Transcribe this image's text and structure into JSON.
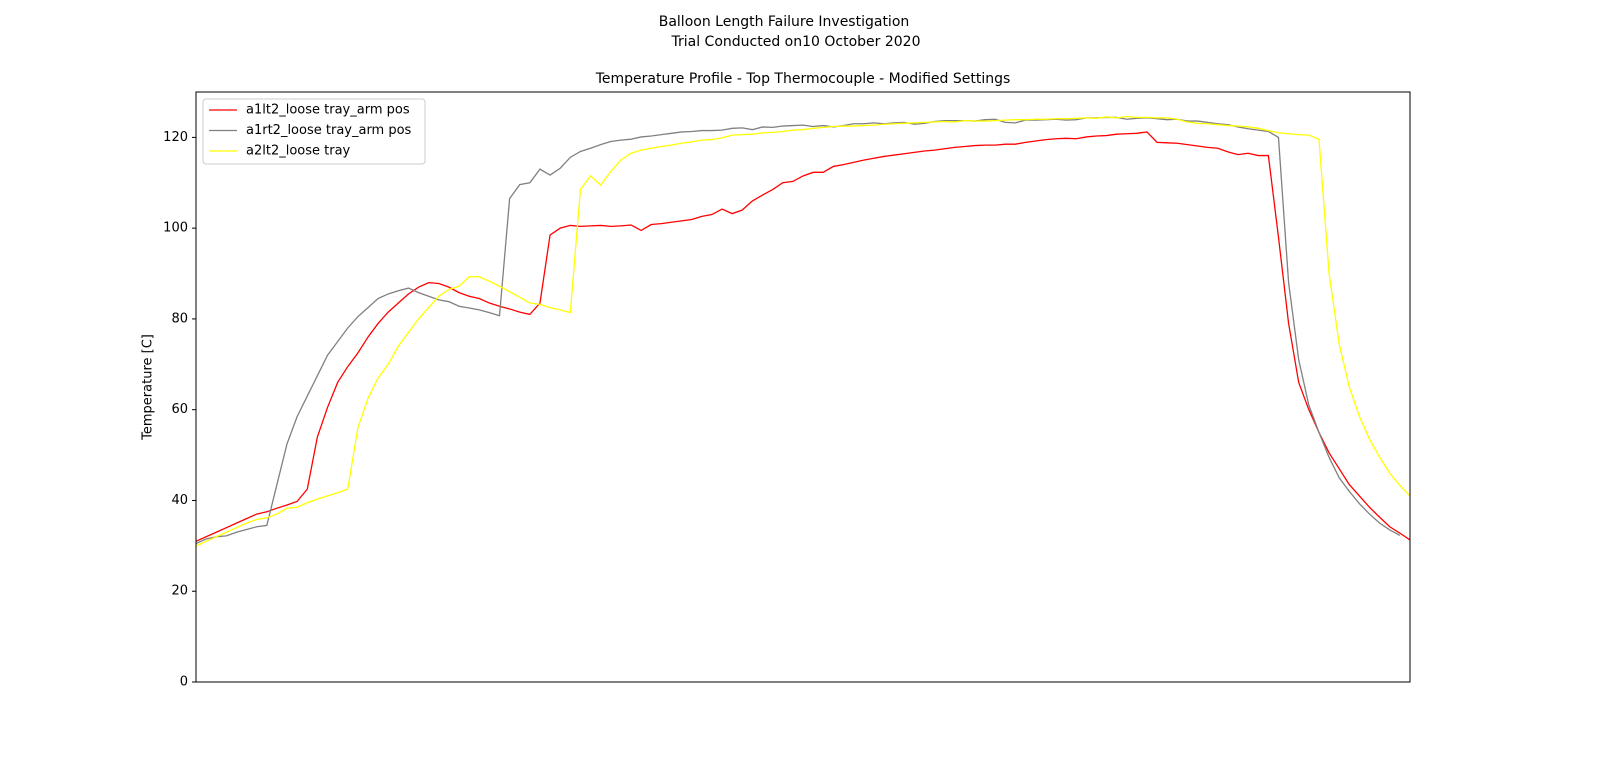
{
  "chart_data": {
    "type": "line",
    "suptitle": "Balloon Length Failure Investigation",
    "subtitle": "Trial Conducted on10 October 2020",
    "title": "Temperature Profile - Top Thermocouple - Modified Settings",
    "y_label": "Temperature [C]",
    "ylim": [
      0,
      130
    ],
    "yticks": [
      0,
      20,
      40,
      60,
      80,
      100,
      120
    ],
    "grid": false,
    "legend": "upper-left",
    "series": [
      {
        "name": "a1lt2_loose tray_arm pos",
        "color": "#ff0000",
        "values": [
          31,
          32,
          33,
          34,
          35,
          36,
          37,
          37.5,
          38.3,
          39,
          39.8,
          42.5,
          54,
          60.5,
          66,
          69.5,
          72.5,
          76,
          79,
          81.5,
          83.5,
          85.5,
          87,
          88,
          87.8,
          87,
          85.8,
          85,
          84.5,
          83.5,
          82.8,
          82.2,
          81.5,
          81,
          83.5,
          98.5,
          100,
          100.6,
          100.4,
          100.5,
          100.6,
          100.4,
          100.5,
          100.7,
          99.5,
          100.8,
          101,
          101.3,
          101.6,
          101.9,
          102.6,
          103,
          104.2,
          103.2,
          104,
          106,
          107.3,
          108.5,
          110,
          110.3,
          111.5,
          112.3,
          112.3,
          113.6,
          114,
          114.5,
          115,
          115.4,
          115.8,
          116.1,
          116.4,
          116.7,
          117,
          117.2,
          117.5,
          117.8,
          118,
          118.2,
          118.3,
          118.3,
          118.5,
          118.5,
          118.9,
          119.2,
          119.5,
          119.7,
          119.8,
          119.7,
          120.1,
          120.3,
          120.4,
          120.7,
          120.8,
          120.9,
          121.2,
          118.9,
          118.8,
          118.7,
          118.4,
          118.1,
          117.8,
          117.6,
          116.8,
          116.2,
          116.5,
          116,
          116,
          98,
          79,
          66,
          60,
          55,
          50.5,
          47,
          43.5,
          41,
          38.5,
          36.3,
          34.2,
          32.8,
          31.3
        ]
      },
      {
        "name": "a1rt2_loose tray_arm pos",
        "color": "#808080",
        "values": [
          30.5,
          31.5,
          32,
          32.2,
          33,
          33.6,
          34.2,
          34.5,
          43.5,
          52.5,
          58.5,
          63,
          67.5,
          72,
          75,
          78,
          80.5,
          82.5,
          84.5,
          85.5,
          86.2,
          86.8,
          85.8,
          85,
          84.2,
          83.8,
          82.8,
          82.4,
          82,
          81.4,
          80.7,
          106.5,
          109.6,
          110,
          113,
          111.7,
          113.2,
          115.6,
          116.9,
          117.6,
          118.4,
          119.1,
          119.4,
          119.6,
          120.1,
          120.3,
          120.6,
          120.9,
          121.2,
          121.3,
          121.5,
          121.5,
          121.6,
          122,
          122.1,
          121.7,
          122.3,
          122.2,
          122.5,
          122.6,
          122.7,
          122.4,
          122.6,
          122.3,
          122.6,
          123,
          123,
          123.2,
          123,
          123.2,
          123.3,
          122.9,
          123.1,
          123.5,
          123.7,
          123.7,
          123.7,
          123.6,
          123.9,
          124,
          123.3,
          123.2,
          123.8,
          123.8,
          123.9,
          124,
          123.8,
          123.9,
          124.3,
          124.3,
          124.4,
          124.4,
          124,
          124.2,
          124.3,
          124.1,
          123.9,
          124,
          123.6,
          123.6,
          123.3,
          123,
          122.8,
          122.3,
          121.9,
          121.6,
          121.3,
          120,
          88,
          71,
          61,
          55,
          49.5,
          45,
          42,
          39.3,
          37,
          35,
          33.5,
          32.3
        ]
      },
      {
        "name": "a2lt2_loose tray",
        "color": "#ffff00",
        "values": [
          30,
          31,
          32,
          33,
          34,
          35,
          35.8,
          36.2,
          37,
          38.3,
          38.5,
          39.5,
          40.3,
          41,
          41.7,
          42.5,
          56,
          62.5,
          67,
          70,
          74,
          77,
          80,
          82.5,
          85,
          86.5,
          87.2,
          89.3,
          89.3,
          88.3,
          87.2,
          86,
          84.8,
          83.5,
          83.2,
          82.5,
          82,
          81.4,
          108.5,
          111.5,
          109.5,
          112.5,
          115,
          116.5,
          117.2,
          117.6,
          118,
          118.3,
          118.7,
          119,
          119.4,
          119.5,
          119.9,
          120.5,
          120.6,
          120.7,
          121,
          121.1,
          121.3,
          121.6,
          121.7,
          122,
          122.2,
          122.4,
          122.5,
          122.5,
          122.6,
          122.7,
          122.9,
          123,
          123.1,
          123.2,
          123.3,
          123.4,
          123.5,
          123.4,
          123.7,
          123.6,
          123.6,
          123.7,
          123.8,
          123.9,
          123.9,
          124,
          124,
          124.1,
          124.1,
          124.2,
          124.3,
          124.2,
          124.5,
          124.3,
          124.6,
          124.4,
          124.4,
          124.3,
          124.3,
          124,
          123.4,
          123.1,
          123,
          122.8,
          122.6,
          122.5,
          122.3,
          122,
          121.5,
          121,
          120.8,
          120.6,
          120.5,
          119.6,
          90,
          74.5,
          65,
          58.5,
          53.5,
          49.5,
          46,
          43.3,
          41
        ]
      }
    ]
  }
}
